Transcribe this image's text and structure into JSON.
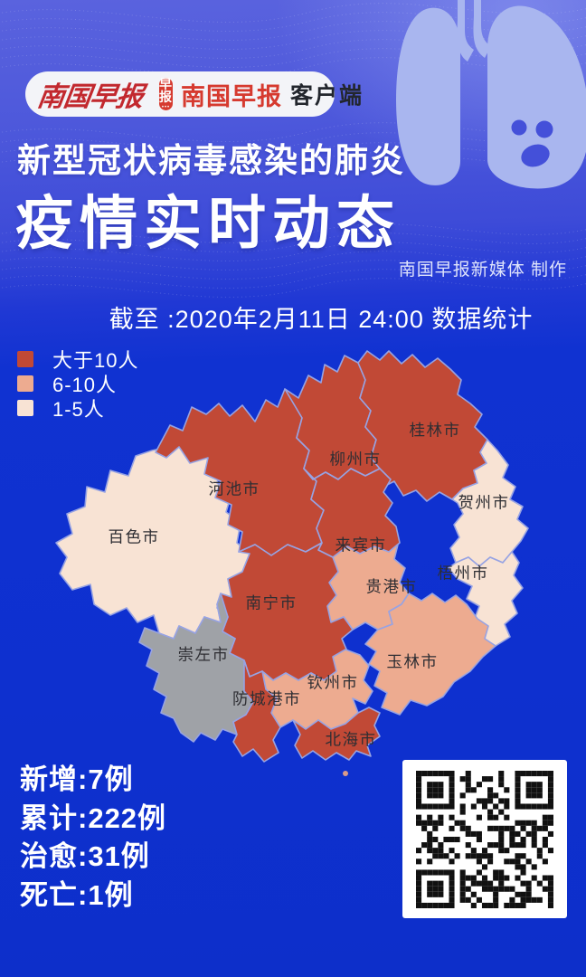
{
  "masthead": {
    "calligraphy": "南国早报",
    "app_icon_text": "早报",
    "app_icon_dots": "•••",
    "app_name": "南国早报",
    "app_suffix": "客户端"
  },
  "titles": {
    "subtitle": "新型冠状病毒感染的肺炎",
    "title": "疫情实时动态",
    "credit": "南国早报新媒体 制作"
  },
  "date_line": "截至 :2020年2月11日 24:00 数据统计",
  "legend": [
    {
      "label": "大于10人",
      "color": "#c14936"
    },
    {
      "label": "6-10人",
      "color": "#edab90"
    },
    {
      "label": "1-5人",
      "color": "#f8e3d4"
    }
  ],
  "map": {
    "type": "choropleth",
    "border_color": "#97a3e3",
    "no_case_color": "#9fa2a7",
    "cities": [
      {
        "name": "桂林市",
        "level": "大于10人"
      },
      {
        "name": "柳州市",
        "level": "大于10人"
      },
      {
        "name": "河池市",
        "level": "大于10人"
      },
      {
        "name": "来宾市",
        "level": "大于10人"
      },
      {
        "name": "南宁市",
        "level": "大于10人"
      },
      {
        "name": "防城港市",
        "level": "大于10人"
      },
      {
        "name": "北海市",
        "level": "大于10人"
      },
      {
        "name": "贵港市",
        "level": "6-10人"
      },
      {
        "name": "玉林市",
        "level": "6-10人"
      },
      {
        "name": "钦州市",
        "level": "6-10人"
      },
      {
        "name": "贺州市",
        "level": "1-5人"
      },
      {
        "name": "梧州市",
        "level": "1-5人"
      },
      {
        "name": "百色市",
        "level": "1-5人"
      },
      {
        "name": "崇左市",
        "level": "none"
      }
    ]
  },
  "stats": [
    "新增:7例",
    "累计:222例",
    "治愈:31例",
    "死亡:1例"
  ],
  "icons": {
    "lungs": "lungs-face-icon",
    "qr": "qr-code"
  }
}
